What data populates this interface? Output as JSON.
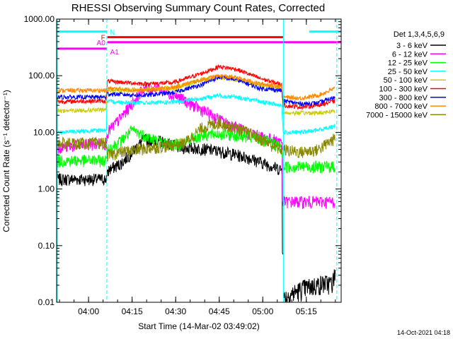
{
  "chart_data": {
    "type": "line",
    "title": "RHESSI Observing Summary Count Rates, Corrected",
    "xlabel": "Start Time (14-Mar-02 03:49:02)",
    "ylabel": "Corrected Count Rate (s⁻¹ detector⁻¹)",
    "x_unit": "minutes after 03:49:02",
    "xlim": [
      0,
      98
    ],
    "ylim": [
      0.01,
      1000
    ],
    "yscale": "log",
    "x_ticks": [
      {
        "x": 11,
        "label": "04:00"
      },
      {
        "x": 26,
        "label": "04:15"
      },
      {
        "x": 41,
        "label": "04:30"
      },
      {
        "x": 56,
        "label": "04:45"
      },
      {
        "x": 71,
        "label": "05:00"
      },
      {
        "x": 86,
        "label": "05:15"
      }
    ],
    "y_ticks": [
      {
        "y": 1000,
        "label": "1000.00"
      },
      {
        "y": 100,
        "label": "100.00"
      },
      {
        "y": 10,
        "label": "10.00"
      },
      {
        "y": 1,
        "label": "1.00"
      },
      {
        "y": 0.1,
        "label": "0.10"
      },
      {
        "y": 0.01,
        "label": "0.01"
      }
    ],
    "legend_title": "Det 1,3,4,5,6,9",
    "legend_position": "right",
    "grid": false,
    "series": [
      {
        "name": "3 - 6 keV",
        "color": "#000000",
        "x": [
          0,
          17,
          18,
          22,
          26,
          30,
          36,
          42,
          50,
          58,
          66,
          72,
          77.5,
          78,
          78.1,
          98
        ],
        "y": [
          1.5,
          1.5,
          2.2,
          2.8,
          4.5,
          7.5,
          7,
          5.5,
          5.2,
          4.5,
          3.6,
          2.8,
          2.2,
          0.09,
          null,
          null
        ],
        "x2": [
          78.2,
          85,
          92,
          95,
          96
        ],
        "y2": [
          0.012,
          0.018,
          0.022,
          0.022,
          0.035
        ]
      },
      {
        "name": "6 - 12 keV",
        "color": "#ff00ff",
        "x": [
          0,
          17,
          17.5,
          22,
          27,
          30,
          35,
          42,
          50,
          58,
          66,
          72,
          77.5,
          78,
          82,
          90,
          96
        ],
        "y": [
          5.5,
          6.5,
          10,
          18,
          38,
          60,
          60,
          42,
          25,
          15,
          10,
          8,
          7,
          0.6,
          0.6,
          0.6,
          0.6
        ]
      },
      {
        "name": "12 - 25 keV",
        "color": "#00ff00",
        "x": [
          0,
          17,
          17.5,
          22,
          26,
          30,
          35,
          40,
          45,
          50,
          56,
          62,
          68,
          74,
          77.5,
          78,
          84,
          90,
          96
        ],
        "y": [
          3.2,
          3.2,
          5,
          7,
          11,
          9,
          7,
          6,
          7,
          9,
          9.5,
          9,
          8,
          6.5,
          5.5,
          2.5,
          2.5,
          2.5,
          2.5
        ]
      },
      {
        "name": "25 - 50 keV",
        "color": "#00ffff",
        "x": [
          0,
          17,
          17.5,
          30,
          40,
          50,
          56,
          62,
          70,
          77.5,
          78,
          84,
          90,
          96
        ],
        "y": [
          10,
          11,
          35,
          33,
          34,
          40,
          45,
          42,
          35,
          30,
          10,
          10,
          11,
          13
        ]
      },
      {
        "name": "50 - 100 keV",
        "color": "#cccc00",
        "x": [
          0,
          17,
          17.5,
          30,
          40,
          50,
          56,
          62,
          70,
          77.5,
          78,
          84,
          90,
          96
        ],
        "y": [
          24,
          25,
          55,
          58,
          60,
          85,
          92,
          85,
          68,
          60,
          22,
          22,
          22,
          24
        ]
      },
      {
        "name": "100 - 300 keV",
        "color": "#ff0000",
        "x": [
          0,
          17,
          17.5,
          30,
          40,
          50,
          56,
          62,
          70,
          77.5,
          78,
          84,
          90,
          96
        ],
        "y": [
          35,
          36,
          80,
          72,
          75,
          110,
          145,
          130,
          90,
          70,
          30,
          28,
          30,
          36
        ]
      },
      {
        "name": "300 - 800 keV",
        "color": "#0000ff",
        "x": [
          0,
          17,
          17.5,
          30,
          40,
          50,
          56,
          62,
          70,
          77.5,
          78,
          84,
          90,
          96
        ],
        "y": [
          42,
          42,
          48,
          45,
          50,
          70,
          95,
          85,
          60,
          55,
          36,
          32,
          33,
          42
        ]
      },
      {
        "name": "800 - 7000 keV",
        "color": "#ff8800",
        "x": [
          0,
          17,
          17.5,
          30,
          40,
          50,
          56,
          62,
          70,
          77.5,
          78,
          84,
          90,
          96
        ],
        "y": [
          55,
          55,
          60,
          55,
          62,
          85,
          100,
          92,
          72,
          65,
          42,
          40,
          45,
          60
        ]
      },
      {
        "name": "7000 - 15000 keV",
        "color": "#888800",
        "x": [
          0,
          17,
          17.5,
          22,
          28,
          34,
          40,
          44,
          50,
          56,
          62,
          68,
          74,
          77.5,
          78,
          84,
          90,
          96
        ],
        "y": [
          6.5,
          6.5,
          4,
          4.5,
          5,
          5.5,
          6,
          6.5,
          12,
          15,
          12,
          9,
          6,
          5,
          5,
          4.5,
          5,
          8
        ]
      }
    ],
    "state_bars": [
      {
        "label": "N",
        "color": "#00ffff",
        "y": 600,
        "segments": [
          [
            0,
            17.2
          ],
          [
            87,
            98
          ]
        ]
      },
      {
        "label": "F",
        "color": "#ff0000",
        "y": 480,
        "segments": [
          [
            17.5,
            78
          ]
        ]
      },
      {
        "label": "A0",
        "color": "#ff00ff",
        "y": 390,
        "segments": [
          [
            17.5,
            98
          ]
        ]
      },
      {
        "label": "A1",
        "color": "#ff00ff",
        "y": 300,
        "segments": [
          [
            0,
            17.2
          ]
        ]
      }
    ],
    "vlines": [
      {
        "x": 17.3,
        "color": "#00ffff",
        "style": "dashed"
      },
      {
        "x": 78.1,
        "color": "#00ffff",
        "style": "solid"
      },
      {
        "x": 96.5,
        "color": "#00ffff",
        "style": "dashed"
      }
    ]
  },
  "footer_date": "14-Oct-2021 04:18"
}
